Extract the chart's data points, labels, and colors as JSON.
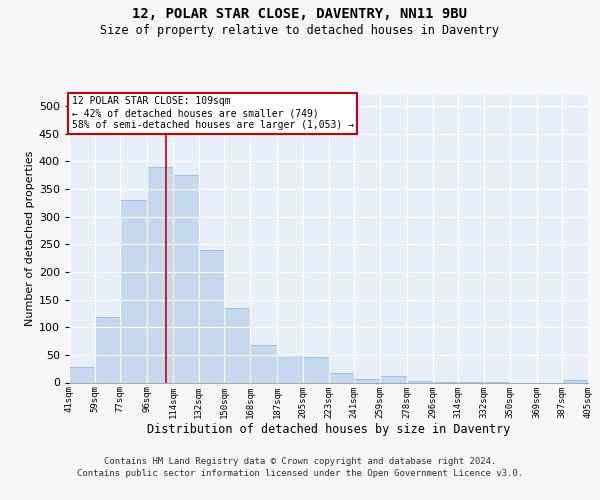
{
  "title": "12, POLAR STAR CLOSE, DAVENTRY, NN11 9BU",
  "subtitle": "Size of property relative to detached houses in Daventry",
  "xlabel": "Distribution of detached houses by size in Daventry",
  "ylabel": "Number of detached properties",
  "bar_color": "#c5d8f0",
  "bar_edge_color": "#8ab4d8",
  "plot_bg_color": "#e8eef8",
  "fig_bg_color": "#f5f6f8",
  "grid_color": "#ffffff",
  "annotation_line_color": "#cc0000",
  "annotation_text_line1": "12 POLAR STAR CLOSE: 109sqm",
  "annotation_text_line2": "← 42% of detached houses are smaller (749)",
  "annotation_text_line3": "58% of semi-detached houses are larger (1,053) →",
  "property_size": 109,
  "bin_edges": [
    41,
    59,
    77,
    96,
    114,
    132,
    150,
    168,
    187,
    205,
    223,
    241,
    259,
    278,
    296,
    314,
    332,
    350,
    369,
    387,
    405
  ],
  "bin_labels": [
    "41sqm",
    "59sqm",
    "77sqm",
    "96sqm",
    "114sqm",
    "132sqm",
    "150sqm",
    "168sqm",
    "187sqm",
    "205sqm",
    "223sqm",
    "241sqm",
    "259sqm",
    "278sqm",
    "296sqm",
    "314sqm",
    "332sqm",
    "350sqm",
    "369sqm",
    "387sqm",
    "405sqm"
  ],
  "bar_heights": [
    28,
    118,
    330,
    390,
    375,
    240,
    135,
    68,
    50,
    46,
    17,
    6,
    11,
    3,
    1,
    1,
    1,
    0,
    0,
    5
  ],
  "ylim": [
    0,
    520
  ],
  "yticks": [
    0,
    50,
    100,
    150,
    200,
    250,
    300,
    350,
    400,
    450,
    500
  ],
  "footer_line1": "Contains HM Land Registry data © Crown copyright and database right 2024.",
  "footer_line2": "Contains public sector information licensed under the Open Government Licence v3.0."
}
